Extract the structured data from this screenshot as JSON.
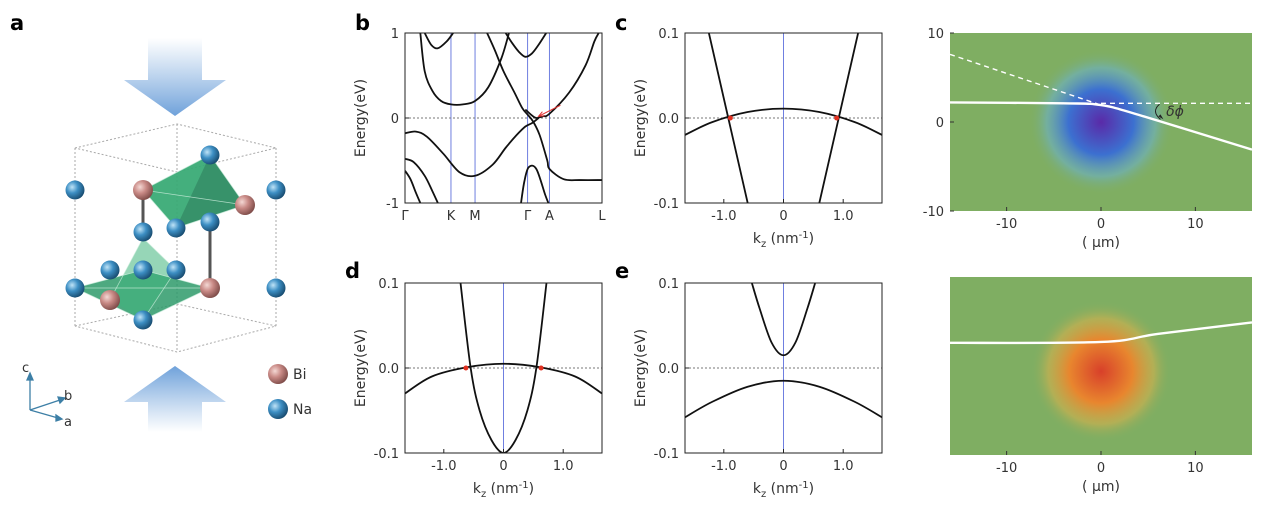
{
  "panel_labels": {
    "a": "a",
    "b": "b",
    "c": "c",
    "d": "d",
    "e": "e"
  },
  "crystal": {
    "legend": [
      {
        "label": "Bi",
        "color": "#c98a86"
      },
      {
        "label": "Na",
        "color": "#3d8fc4"
      }
    ],
    "axes": {
      "c": "c",
      "b": "b",
      "a": "a"
    },
    "arrow_color": "#5f97d6",
    "polyhedron_color": "#2e9a6a"
  },
  "chart_data": [
    {
      "id": "b",
      "type": "line",
      "ylabel": "Energy(eV)",
      "ylim": [
        -1,
        1
      ],
      "yticks": [
        {
          "v": 1,
          "label": "1"
        },
        {
          "v": 0,
          "label": "0"
        },
        {
          "v": -1,
          "label": "-1"
        }
      ],
      "x_high_symmetry": [
        {
          "x": 0,
          "label": "Γ"
        },
        {
          "x": 0.42,
          "label": "K"
        },
        {
          "x": 0.64,
          "label": "M"
        },
        {
          "x": 1.12,
          "label": "Γ"
        },
        {
          "x": 1.32,
          "label": "A"
        },
        {
          "x": 1.8,
          "label": "L"
        }
      ],
      "xlim": [
        0,
        1.8
      ],
      "vlines": [
        0.42,
        0.64,
        1.12,
        1.32
      ],
      "fermi_level": 0,
      "series": [
        {
          "points": [
            [
              0.14,
              1.0
            ],
            [
              0.18,
              0.55
            ],
            [
              0.25,
              0.32
            ],
            [
              0.33,
              0.2
            ],
            [
              0.42,
              0.16
            ],
            [
              0.53,
              0.16
            ],
            [
              0.64,
              0.2
            ],
            [
              0.76,
              0.36
            ],
            [
              0.88,
              0.7
            ],
            [
              0.95,
              1.0
            ]
          ]
        },
        {
          "points": [
            [
              0.18,
              1.0
            ],
            [
              0.24,
              0.86
            ],
            [
              0.3,
              0.82
            ],
            [
              0.38,
              0.9
            ],
            [
              0.44,
              1.0
            ]
          ]
        },
        {
          "points": [
            [
              0.75,
              1.0
            ],
            [
              0.82,
              0.8
            ],
            [
              0.9,
              0.55
            ],
            [
              1.0,
              0.3
            ],
            [
              1.07,
              0.12
            ],
            [
              1.12,
              0.04
            ],
            [
              1.17,
              -0.04
            ],
            [
              1.23,
              -0.2
            ],
            [
              1.3,
              -0.5
            ],
            [
              1.32,
              -0.6
            ],
            [
              1.45,
              -0.72
            ],
            [
              1.6,
              -0.73
            ],
            [
              1.8,
              -0.73
            ]
          ]
        },
        {
          "points": [
            [
              0.92,
              1.0
            ],
            [
              0.98,
              0.88
            ],
            [
              1.04,
              0.78
            ],
            [
              1.1,
              0.72
            ],
            [
              1.16,
              0.76
            ],
            [
              1.22,
              0.86
            ],
            [
              1.29,
              1.0
            ]
          ]
        },
        {
          "points": [
            [
              1.1,
              0.1
            ],
            [
              1.16,
              0.03
            ],
            [
              1.2,
              0.0
            ],
            [
              1.26,
              0.02
            ],
            [
              1.32,
              0.05
            ],
            [
              1.5,
              0.3
            ],
            [
              1.65,
              0.62
            ],
            [
              1.73,
              0.9
            ],
            [
              1.77,
              1.0
            ]
          ]
        },
        {
          "points": [
            [
              0.0,
              -0.18
            ],
            [
              0.1,
              -0.16
            ],
            [
              0.2,
              -0.22
            ],
            [
              0.35,
              -0.42
            ],
            [
              0.5,
              -0.64
            ],
            [
              0.64,
              -0.68
            ],
            [
              0.8,
              -0.55
            ],
            [
              0.92,
              -0.35
            ],
            [
              1.02,
              -0.2
            ],
            [
              1.1,
              -0.1
            ],
            [
              1.16,
              -0.06
            ],
            [
              1.22,
              0.0
            ]
          ]
        },
        {
          "points": [
            [
              0.0,
              -0.48
            ],
            [
              0.08,
              -0.52
            ],
            [
              0.18,
              -0.68
            ],
            [
              0.25,
              -0.86
            ],
            [
              0.3,
              -1.0
            ]
          ]
        },
        {
          "points": [
            [
              0.0,
              -0.62
            ],
            [
              0.05,
              -0.72
            ],
            [
              0.1,
              -0.88
            ],
            [
              0.14,
              -1.0
            ]
          ]
        },
        {
          "points": [
            [
              1.06,
              -1.0
            ],
            [
              1.09,
              -0.75
            ],
            [
              1.13,
              -0.58
            ],
            [
              1.2,
              -0.6
            ],
            [
              1.28,
              -0.9
            ],
            [
              1.31,
              -1.0
            ]
          ]
        }
      ],
      "annotation_arrow": {
        "from": [
          1.42,
          0.15
        ],
        "to": [
          1.22,
          0.02
        ],
        "color": "#e03030"
      }
    },
    {
      "id": "c",
      "type": "line",
      "xlabel": "k",
      "xlabel_sub": "z",
      "xlabel_unit": "(nm",
      "xlabel_sup": "-1",
      "xlabel_close": ")",
      "ylabel": "Energy(eV)",
      "xlim": [
        -1.65,
        1.65
      ],
      "ylim": [
        -0.1,
        0.1
      ],
      "xticks": [
        {
          "v": -1,
          "label": "-1.0"
        },
        {
          "v": 0,
          "label": "0"
        },
        {
          "v": 1,
          "label": "1.0"
        }
      ],
      "yticks": [
        {
          "v": 0.1,
          "label": "0.1"
        },
        {
          "v": 0,
          "label": "0.0"
        },
        {
          "v": -0.1,
          "label": "-0.1"
        }
      ],
      "vline": 0,
      "fermi_level": 0,
      "series": [
        {
          "points": [
            [
              -1.65,
              -0.02
            ],
            [
              -1.2,
              -0.005
            ],
            [
              -0.6,
              0.007
            ],
            [
              0,
              0.011
            ],
            [
              0.6,
              0.007
            ],
            [
              1.2,
              -0.005
            ],
            [
              1.65,
              -0.02
            ]
          ]
        },
        {
          "points": [
            [
              -1.25,
              0.1
            ],
            [
              -0.6,
              -0.1
            ]
          ]
        },
        {
          "points": [
            [
              0.6,
              -0.1
            ],
            [
              1.25,
              0.1
            ]
          ]
        }
      ],
      "crossings": [
        [
          -0.89,
          0.0
        ],
        [
          0.89,
          0.0
        ]
      ]
    },
    {
      "id": "d",
      "type": "line",
      "xlabel": "k",
      "xlabel_sub": "z",
      "xlabel_unit": "(nm",
      "xlabel_sup": "-1",
      "xlabel_close": ")",
      "ylabel": "Energy(eV)",
      "xlim": [
        -1.65,
        1.65
      ],
      "ylim": [
        -0.1,
        0.1
      ],
      "xticks": [
        {
          "v": -1,
          "label": "-1.0"
        },
        {
          "v": 0,
          "label": "0"
        },
        {
          "v": 1,
          "label": "1.0"
        }
      ],
      "yticks": [
        {
          "v": 0.1,
          "label": "0.1"
        },
        {
          "v": 0,
          "label": "0.0"
        },
        {
          "v": -0.1,
          "label": "-0.1"
        }
      ],
      "vline": 0,
      "fermi_level": 0,
      "series": [
        {
          "points": [
            [
              -1.65,
              -0.03
            ],
            [
              -1.2,
              -0.01
            ],
            [
              -0.6,
              0.001
            ],
            [
              0,
              0.005
            ],
            [
              0.6,
              0.001
            ],
            [
              1.2,
              -0.01
            ],
            [
              1.65,
              -0.03
            ]
          ]
        },
        {
          "points": [
            [
              -0.72,
              0.1
            ],
            [
              -0.55,
              0.0
            ],
            [
              -0.4,
              -0.05
            ],
            [
              -0.2,
              -0.085
            ],
            [
              0,
              -0.1
            ],
            [
              0.2,
              -0.085
            ],
            [
              0.4,
              -0.05
            ],
            [
              0.55,
              0.0
            ],
            [
              0.72,
              0.1
            ]
          ]
        }
      ],
      "crossings": [
        [
          -0.63,
          0.0
        ],
        [
          0.63,
          0.0
        ]
      ]
    },
    {
      "id": "e",
      "type": "line",
      "xlabel": "k",
      "xlabel_sub": "z",
      "xlabel_unit": "(nm",
      "xlabel_sup": "-1",
      "xlabel_close": ")",
      "ylabel": "Energy(eV)",
      "xlim": [
        -1.65,
        1.65
      ],
      "ylim": [
        -0.1,
        0.1
      ],
      "xticks": [
        {
          "v": -1,
          "label": "-1.0"
        },
        {
          "v": 0,
          "label": "0"
        },
        {
          "v": 1,
          "label": "1.0"
        }
      ],
      "yticks": [
        {
          "v": 0.1,
          "label": "0.1"
        },
        {
          "v": 0,
          "label": "0.0"
        },
        {
          "v": -0.1,
          "label": "-0.1"
        }
      ],
      "vline": 0,
      "fermi_level": 0,
      "series": [
        {
          "points": [
            [
              -1.65,
              -0.058
            ],
            [
              -1.2,
              -0.04
            ],
            [
              -0.6,
              -0.022
            ],
            [
              0,
              -0.015
            ],
            [
              0.6,
              -0.022
            ],
            [
              1.2,
              -0.04
            ],
            [
              1.65,
              -0.058
            ]
          ]
        },
        {
          "points": [
            [
              -0.53,
              0.1
            ],
            [
              -0.4,
              0.07
            ],
            [
              -0.2,
              0.03
            ],
            [
              0,
              0.015
            ],
            [
              0.2,
              0.03
            ],
            [
              0.4,
              0.07
            ],
            [
              0.53,
              0.1
            ]
          ]
        }
      ]
    },
    {
      "id": "f",
      "type": "heatmap",
      "xlabel": "( μm)",
      "xlim": [
        -16,
        16
      ],
      "ylim": [
        -10,
        10
      ],
      "xticks": [
        {
          "v": -10,
          "label": "-10"
        },
        {
          "v": 0,
          "label": "0"
        },
        {
          "v": 10,
          "label": "10"
        }
      ],
      "yticks": [
        {
          "v": 10,
          "label": "10"
        },
        {
          "v": 0,
          "label": "0"
        },
        {
          "v": -10,
          "label": "-10"
        }
      ],
      "background": "#7fae62",
      "blob": {
        "center": [
          0,
          0
        ],
        "radius": 3.5,
        "colors": [
          "#5a2aa8",
          "#3c70d0",
          "#6fb0b8"
        ]
      },
      "ray": [
        [
          -16,
          2.2
        ],
        [
          -4,
          2.1
        ],
        [
          0,
          1.9
        ],
        [
          4,
          0.8
        ],
        [
          16,
          -3.1
        ]
      ],
      "dashed_ray": [
        [
          -16,
          7.6
        ],
        [
          0,
          1.9
        ]
      ],
      "dashed_level": [
        [
          0,
          2.1
        ],
        [
          16,
          2.1
        ]
      ],
      "annotation": "δϕ"
    },
    {
      "id": "g",
      "type": "heatmap",
      "xlabel": "( μm)",
      "xlim": [
        -16,
        16
      ],
      "ylim": [
        -10,
        10
      ],
      "xticks": [
        {
          "v": -10,
          "label": "-10"
        },
        {
          "v": 0,
          "label": "0"
        },
        {
          "v": 10,
          "label": "10"
        }
      ],
      "background": "#7fae62",
      "blob": {
        "center": [
          0,
          -0.6
        ],
        "radius": 3.4,
        "colors": [
          "#d8402a",
          "#e8862e",
          "#c8b050"
        ]
      },
      "ray": [
        [
          -16,
          2.6
        ],
        [
          0,
          2.7
        ],
        [
          6,
          3.6
        ],
        [
          16,
          4.9
        ]
      ]
    }
  ]
}
